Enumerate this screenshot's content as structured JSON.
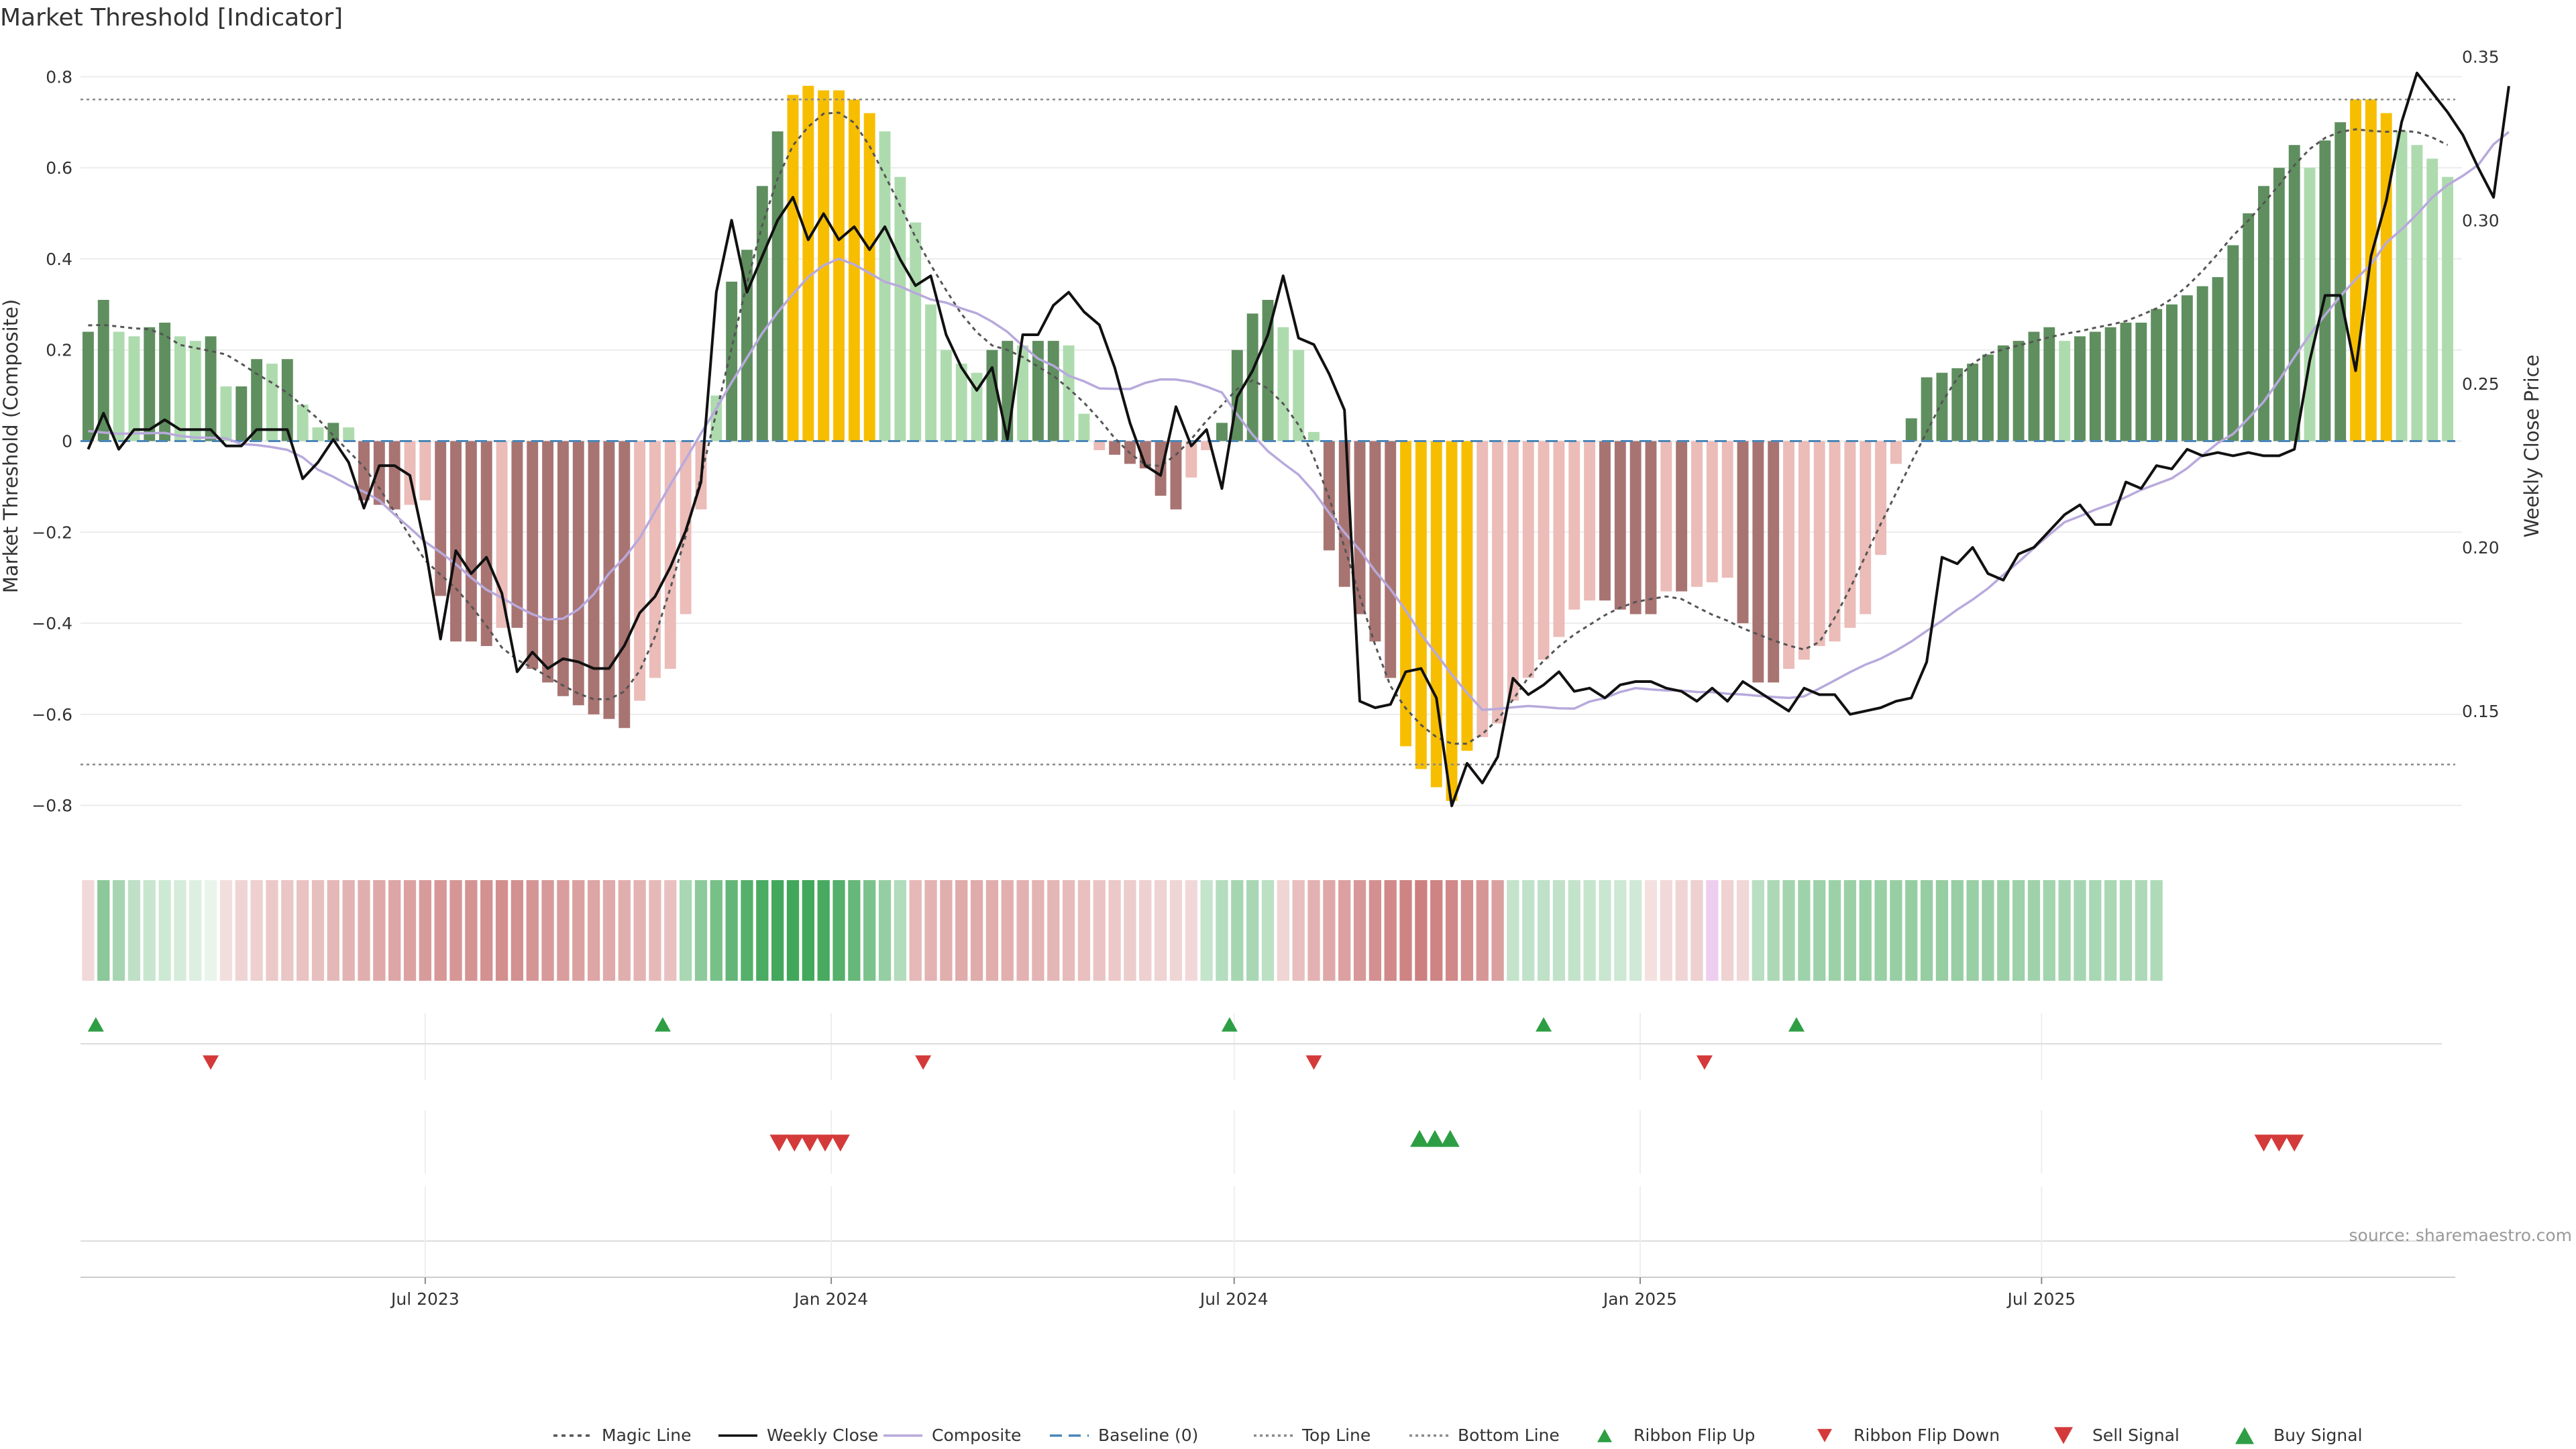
{
  "title": "Market Threshold [Indicator]",
  "source": "source: sharemaestro.com",
  "chart_data": {
    "type": "bar+line",
    "y_left_label": "Market Threshold (Composite)",
    "y_right_label": "Weekly Close Price",
    "y_left_range": [
      -0.88,
      0.88
    ],
    "y_right_range": [
      0.11,
      0.355
    ],
    "y_left_ticks": [
      "0.8",
      "0.6",
      "0.4",
      "0.2",
      "0",
      "−0.2",
      "−0.4",
      "−0.6",
      "−0.8"
    ],
    "y_left_tick_values": [
      0.8,
      0.6,
      0.4,
      0.2,
      0,
      -0.2,
      -0.4,
      -0.6,
      -0.8
    ],
    "y_right_ticks": [
      "0.35",
      "0.30",
      "0.25",
      "0.20",
      "0.15"
    ],
    "y_right_tick_values": [
      0.35,
      0.3,
      0.25,
      0.2,
      0.15
    ],
    "x_ticks": [
      "Jul 2023",
      "Jan 2024",
      "Jul 2024",
      "Jan 2025",
      "Jul 2025"
    ],
    "x_tick_week_index": [
      22.5,
      49,
      75.3,
      101.8,
      128
    ],
    "top_line": 0.75,
    "bottom_line": -0.71,
    "bars": [
      0.24,
      0.31,
      0.24,
      0.23,
      0.25,
      0.26,
      0.23,
      0.22,
      0.23,
      0.12,
      0.12,
      0.18,
      0.17,
      0.18,
      0.08,
      0.03,
      0.04,
      0.03,
      -0.13,
      -0.14,
      -0.15,
      -0.14,
      -0.13,
      -0.34,
      -0.44,
      -0.44,
      -0.45,
      -0.41,
      -0.41,
      -0.5,
      -0.53,
      -0.56,
      -0.58,
      -0.6,
      -0.61,
      -0.63,
      -0.57,
      -0.52,
      -0.5,
      -0.38,
      -0.15,
      0.1,
      0.35,
      0.42,
      0.56,
      0.68,
      0.76,
      0.78,
      0.77,
      0.77,
      0.75,
      0.72,
      0.68,
      0.58,
      0.48,
      0.3,
      0.2,
      0.17,
      0.15,
      0.2,
      0.22,
      0.21,
      0.22,
      0.22,
      0.21,
      0.06,
      -0.02,
      -0.03,
      -0.05,
      -0.06,
      -0.12,
      -0.15,
      -0.08,
      -0.02,
      0.04,
      0.2,
      0.28,
      0.31,
      0.25,
      0.2,
      0.02,
      -0.24,
      -0.32,
      -0.38,
      -0.44,
      -0.52,
      -0.67,
      -0.72,
      -0.76,
      -0.79,
      -0.68,
      -0.65,
      -0.62,
      -0.57,
      -0.52,
      -0.48,
      -0.43,
      -0.37,
      -0.35,
      -0.35,
      -0.37,
      -0.38,
      -0.38,
      -0.33,
      -0.33,
      -0.32,
      -0.31,
      -0.3,
      -0.4,
      -0.53,
      -0.53,
      -0.5,
      -0.48,
      -0.45,
      -0.44,
      -0.41,
      -0.38,
      -0.25,
      -0.05,
      0.05,
      0.14,
      0.15,
      0.16,
      0.17,
      0.19,
      0.21,
      0.22,
      0.24,
      0.25,
      0.22,
      0.23,
      0.24,
      0.25,
      0.26,
      0.26,
      0.29,
      0.3,
      0.32,
      0.34,
      0.36,
      0.43,
      0.5,
      0.56,
      0.6,
      0.65,
      0.6,
      0.66,
      0.7,
      0.75,
      0.75,
      0.72,
      0.68,
      0.65,
      0.62,
      0.58
    ],
    "weekly_close": [
      0.23,
      0.241,
      0.23,
      0.236,
      0.236,
      0.239,
      0.236,
      0.236,
      0.236,
      0.231,
      0.231,
      0.236,
      0.236,
      0.236,
      0.221,
      0.226,
      0.233,
      0.226,
      0.212,
      0.225,
      0.225,
      0.222,
      0.2,
      0.172,
      0.199,
      0.192,
      0.197,
      0.186,
      0.162,
      0.168,
      0.163,
      0.166,
      0.165,
      0.163,
      0.163,
      0.17,
      0.18,
      0.185,
      0.194,
      0.205,
      0.22,
      0.278,
      0.3,
      0.278,
      0.289,
      0.3,
      0.307,
      0.294,
      0.302,
      0.294,
      0.298,
      0.291,
      0.298,
      0.288,
      0.28,
      0.283,
      0.265,
      0.255,
      0.248,
      0.255,
      0.233,
      0.265,
      0.265,
      0.274,
      0.278,
      0.272,
      0.268,
      0.255,
      0.238,
      0.225,
      0.222,
      0.243,
      0.231,
      0.236,
      0.218,
      0.246,
      0.254,
      0.265,
      0.283,
      0.264,
      0.262,
      0.253,
      0.242,
      0.153,
      0.151,
      0.152,
      0.162,
      0.163,
      0.154,
      0.121,
      0.134,
      0.128,
      0.136,
      0.16,
      0.155,
      0.158,
      0.162,
      0.156,
      0.157,
      0.154,
      0.158,
      0.159,
      0.159,
      0.157,
      0.156,
      0.153,
      0.157,
      0.153,
      0.159,
      0.156,
      0.153,
      0.15,
      0.157,
      0.155,
      0.155,
      0.149,
      0.15,
      0.151,
      0.153,
      0.154,
      0.165,
      0.197,
      0.195,
      0.2,
      0.192,
      0.19,
      0.198,
      0.2,
      0.205,
      0.21,
      0.213,
      0.207,
      0.207,
      0.22,
      0.218,
      0.225,
      0.224,
      0.23,
      0.228,
      0.229,
      0.228,
      0.229,
      0.228,
      0.228,
      0.23,
      0.257,
      0.277,
      0.277,
      0.254,
      0.289,
      0.306,
      0.33,
      0.345,
      0.339,
      0.333,
      0.326,
      0.316,
      0.307,
      0.341
    ],
    "ribbon_shades": [
      "#f2d9d9",
      "#8cc89a",
      "#a7d5b2",
      "#bfe0c7",
      "#c8e6cf",
      "#cde9d3",
      "#d4ecd9",
      "#dcefe0",
      "#e9f4eb",
      "#f3dede",
      "#f0d4d4",
      "#eed0d0",
      "#ecc9c9",
      "#eac6c6",
      "#e9c2c2",
      "#e8bfbf",
      "#e5b8b8",
      "#e3b3b3",
      "#e1aeae",
      "#dfa9a9",
      "#dda5a5",
      "#dca2a2",
      "#d89b9b",
      "#d79797",
      "#d69696",
      "#d59494",
      "#d49191",
      "#d38e8e",
      "#d39090",
      "#d59595",
      "#d79999",
      "#d99d9d",
      "#dba1a1",
      "#dda5a5",
      "#dfaaaa",
      "#e1aeae",
      "#e3b2b2",
      "#e6b9b9",
      "#e9c0c0",
      "#a9d7b3",
      "#8dca9b",
      "#77c088",
      "#63b677",
      "#55b06b",
      "#4aab62",
      "#44a85c",
      "#41a75a",
      "#42a85b",
      "#48aa60",
      "#55b06b",
      "#66b779",
      "#7bc28c",
      "#95cea2",
      "#b2dcbc",
      "#e6b8b8",
      "#e3b2b2",
      "#e1aeae",
      "#e0abab",
      "#e0abab",
      "#e1adad",
      "#e2afaf",
      "#e3b1b1",
      "#e4b3b3",
      "#e5b6b6",
      "#e7bbbb",
      "#e9bfbf",
      "#eac4c4",
      "#ecc8c8",
      "#edcccc",
      "#eed0d0",
      "#efd2d2",
      "#f0d5d5",
      "#f1d8d8",
      "#c5e4cc",
      "#b4dcbe",
      "#a6d6b1",
      "#a9d7b4",
      "#bce0c4",
      "#f0d5d5",
      "#e8bebe",
      "#e3b1b1",
      "#dfa8a8",
      "#dca0a0",
      "#d89898",
      "#d49090",
      "#d18989",
      "#cf8484",
      "#cd8080",
      "#cf8484",
      "#d18888",
      "#d48f8f",
      "#d79696",
      "#daa0a0",
      "#c3e3ca",
      "#c0e2c8",
      "#bfe1c7",
      "#c1e2c8",
      "#c3e3ca",
      "#c6e5cd",
      "#c9e6d0",
      "#cde8d3",
      "#d0e9d6",
      "#f5e0e0",
      "#f2d9d9",
      "#f0d4d4",
      "#eed0d0",
      "#eeceee",
      "#efd2d2",
      "#f1d7d7",
      "#b9dec2",
      "#acd8b6",
      "#a3d4ae",
      "#9ed2aa",
      "#9dd1a9",
      "#9cd1a8",
      "#9bd0a7",
      "#99cfa5",
      "#98cfa4",
      "#97cea3",
      "#96cea2",
      "#96cda2",
      "#96cda2",
      "#97cea3",
      "#98cfa4",
      "#9acfa6",
      "#9bd0a7",
      "#9dd1a9",
      "#9fd2ab",
      "#a2d4ad",
      "#a4d5af",
      "#a6d6b1",
      "#a8d7b3",
      "#aad8b5",
      "#acd8b6",
      "#aed9b8",
      "#afdab9"
    ],
    "ribbon_flip_up_weeks": [
      1,
      38,
      75,
      95.5,
      112
    ],
    "ribbon_flip_down_weeks": [
      8.5,
      55,
      80.5,
      106
    ],
    "sell_signal_weeks": [
      45,
      46,
      47,
      48,
      49
    ],
    "buy_signal_weeks": [
      87,
      88,
      89
    ],
    "sell_signal_weeks_2": [
      142.5,
      143.5,
      144.5
    ],
    "legend": [
      "Magic Line",
      "Weekly Close",
      "Composite",
      "Baseline (0)",
      "Top Line",
      "Bottom Line",
      "Ribbon Flip Up",
      "Ribbon Flip Down",
      "Sell Signal",
      "Buy Signal"
    ],
    "colors": {
      "bar_pos_dark": "#5f8f5f",
      "bar_pos_light": "#aedbae",
      "bar_neg_dark": "#a87472",
      "bar_neg_light": "#ebbcb8",
      "bar_extreme": "#f7be00",
      "weekly_close": "#111111",
      "composite": "#b8a9dc",
      "magic_line": "#555555",
      "baseline": "#4a86b8",
      "threshold_line": "#888888",
      "flip_up": "#2e9e44",
      "flip_down": "#d43a3a"
    }
  }
}
